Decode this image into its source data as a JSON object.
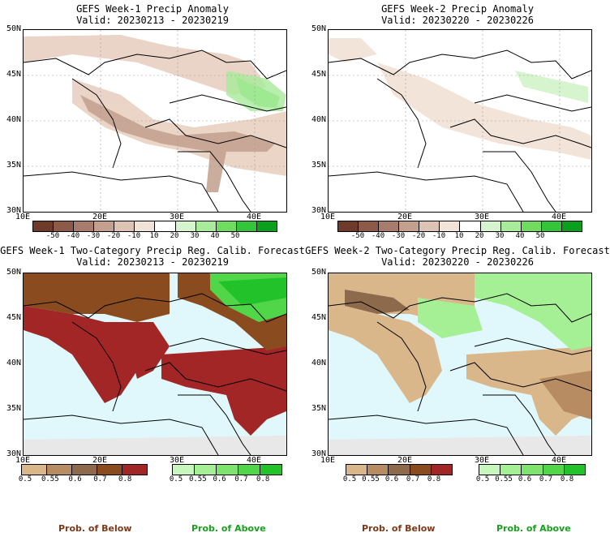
{
  "panels": [
    {
      "title": "GEFS Week-1 Precip Anomaly",
      "valid": "Valid: 20230213 - 20230219"
    },
    {
      "title": "GEFS Week-2 Precip Anomaly",
      "valid": "Valid: 20230220 - 20230226"
    },
    {
      "title": "GEFS Week-1 Two-Category Precip Reg. Calib. Forecast",
      "valid": "Valid: 20230213 - 20230219"
    },
    {
      "title": "GEFS Week-2 Two-Category Precip Reg. Calib. Forecast",
      "valid": "Valid: 20230220 - 20230226"
    }
  ],
  "lat_labels": [
    "50N",
    "45N",
    "40N",
    "35N",
    "30N"
  ],
  "lon_labels": [
    "10E",
    "20E",
    "30E",
    "40E"
  ],
  "anomaly_colorbar": {
    "labels": [
      "-50",
      "-40",
      "-30",
      "-20",
      "-10",
      "10",
      "20",
      "30",
      "40",
      "50"
    ],
    "colors": [
      "#6e3a2a",
      "#8e5a48",
      "#a77c6c",
      "#c39f8e",
      "#dcc3b4",
      "#f2e3d8",
      "#ffffff",
      "#d6f5cf",
      "#a8eb9a",
      "#6fdc5f",
      "#33c43a",
      "#0a9f1c"
    ]
  },
  "prob_below": {
    "labels": [
      "0.5",
      "0.55",
      "0.6",
      "0.7",
      "0.8"
    ],
    "colors": [
      "#d9b78a",
      "#b88c62",
      "#8e6a4c",
      "#8a4b1e",
      "#a32626"
    ],
    "title": "Prob. of Below",
    "title_color": "#7a3a1a"
  },
  "prob_above": {
    "labels": [
      "0.5",
      "0.55",
      "0.6",
      "0.7",
      "0.8"
    ],
    "colors": [
      "#c8f7bd",
      "#a5ef94",
      "#7fe46d",
      "#51d64a",
      "#22c22a"
    ],
    "title": "Prob. of Above",
    "title_color": "#18a01e"
  }
}
